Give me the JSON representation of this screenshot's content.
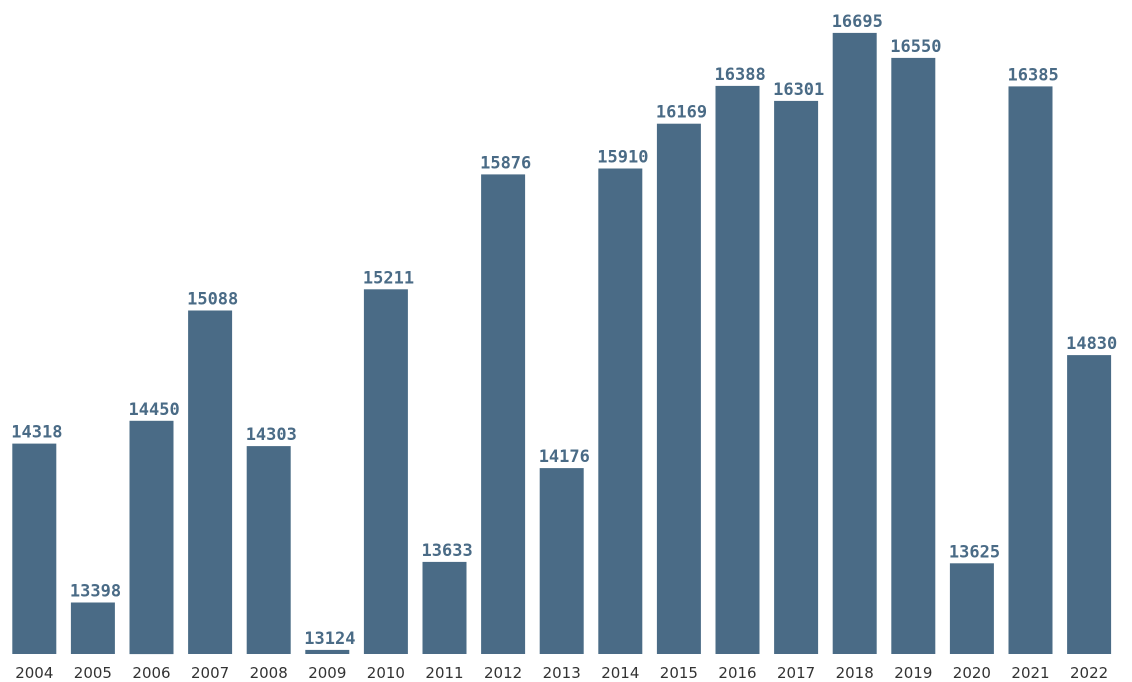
{
  "colors": {
    "bar": "#4a6b86",
    "value_label": "#4a6b86",
    "tick_label": "#333333",
    "background": "#ffffff"
  },
  "chart_data": {
    "type": "bar",
    "title": "",
    "xlabel": "",
    "ylabel": "",
    "categories": [
      "2004",
      "2005",
      "2006",
      "2007",
      "2008",
      "2009",
      "2010",
      "2011",
      "2012",
      "2013",
      "2014",
      "2015",
      "2016",
      "2017",
      "2018",
      "2019",
      "2020",
      "2021",
      "2022"
    ],
    "values": [
      14318,
      13398,
      14450,
      15088,
      14303,
      13124,
      15211,
      13633,
      15876,
      14176,
      15910,
      16169,
      16388,
      16301,
      16695,
      16550,
      13625,
      16385,
      14830
    ],
    "ylim": [
      13100,
      16700
    ],
    "grid": false,
    "legend": "none",
    "data_labels": true
  }
}
